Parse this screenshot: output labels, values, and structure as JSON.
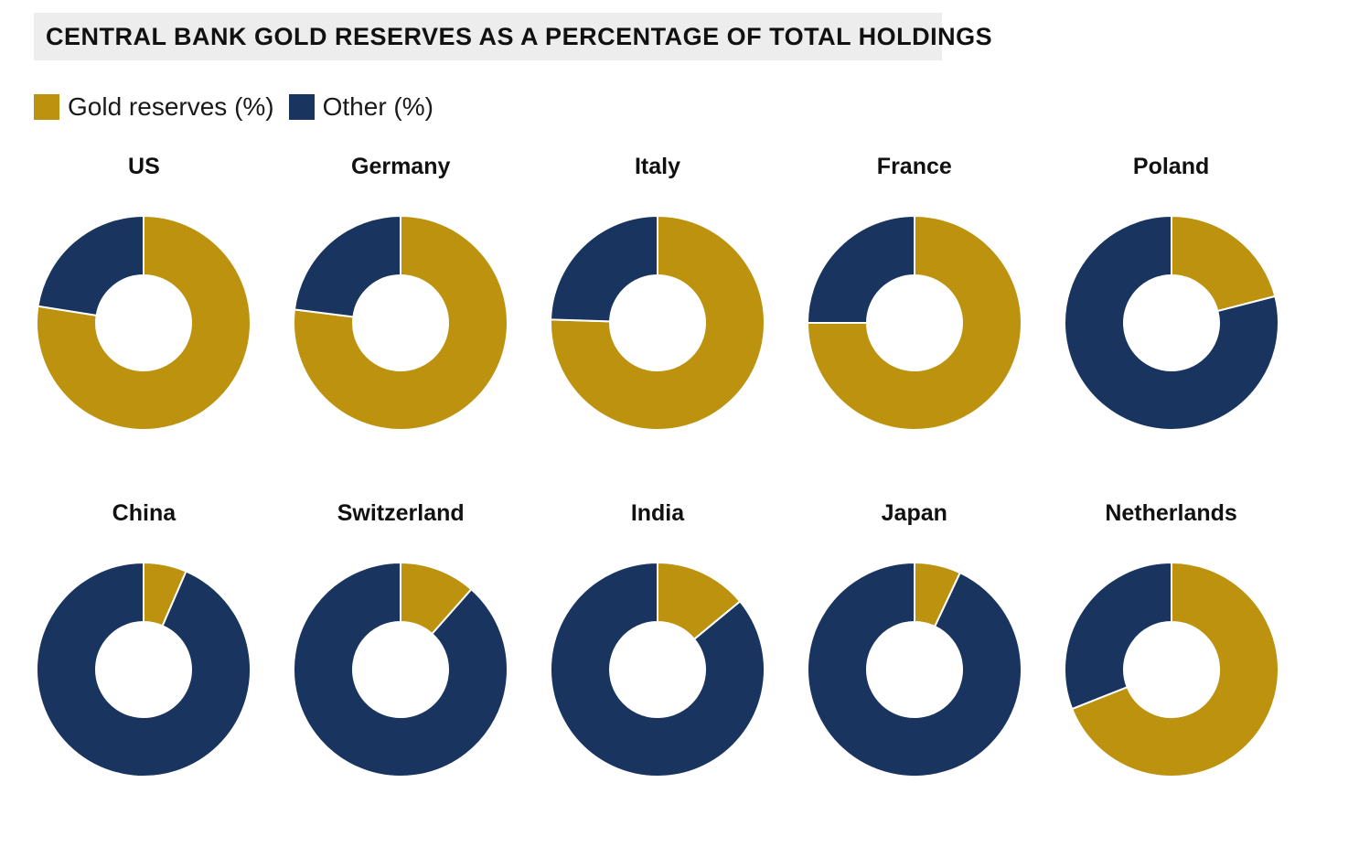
{
  "header": {
    "title": "CENTRAL BANK GOLD RESERVES AS A PERCENTAGE OF TOTAL HOLDINGS",
    "background": "#ededed"
  },
  "legend": {
    "items": [
      {
        "label": "Gold reserves (%)",
        "color": "#BC920F"
      },
      {
        "label": "Other (%)",
        "color": "#18345F"
      }
    ]
  },
  "chart_data": {
    "type": "pie",
    "variant": "donut-small-multiples",
    "title": "CENTRAL BANK GOLD RESERVES AS A PERCENTAGE OF TOTAL HOLDINGS",
    "legend_position": "top-left",
    "series_labels": [
      "Gold reserves (%)",
      "Other (%)"
    ],
    "colors": {
      "gold": "#BC920F",
      "other": "#18345F",
      "slice_border": "#ffffff"
    },
    "start_angle_deg": 0,
    "direction": "clockwise",
    "donut_hole_ratio": 0.44,
    "charts": [
      {
        "country": "US",
        "gold_pct": 77.5,
        "other_pct": 22.5
      },
      {
        "country": "Germany",
        "gold_pct": 77.0,
        "other_pct": 23.0
      },
      {
        "country": "Italy",
        "gold_pct": 75.5,
        "other_pct": 24.5
      },
      {
        "country": "France",
        "gold_pct": 75.0,
        "other_pct": 25.0
      },
      {
        "country": "Poland",
        "gold_pct": 21.0,
        "other_pct": 79.0
      },
      {
        "country": "China",
        "gold_pct": 6.5,
        "other_pct": 93.5
      },
      {
        "country": "Switzerland",
        "gold_pct": 11.5,
        "other_pct": 88.5
      },
      {
        "country": "India",
        "gold_pct": 14.0,
        "other_pct": 86.0
      },
      {
        "country": "Japan",
        "gold_pct": 7.0,
        "other_pct": 93.0
      },
      {
        "country": "Netherlands",
        "gold_pct": 69.0,
        "other_pct": 31.0
      }
    ],
    "rows": [
      [
        "US",
        "Germany",
        "Italy",
        "France",
        "Poland"
      ],
      [
        "China",
        "Switzerland",
        "India",
        "Japan",
        "Netherlands"
      ]
    ]
  }
}
